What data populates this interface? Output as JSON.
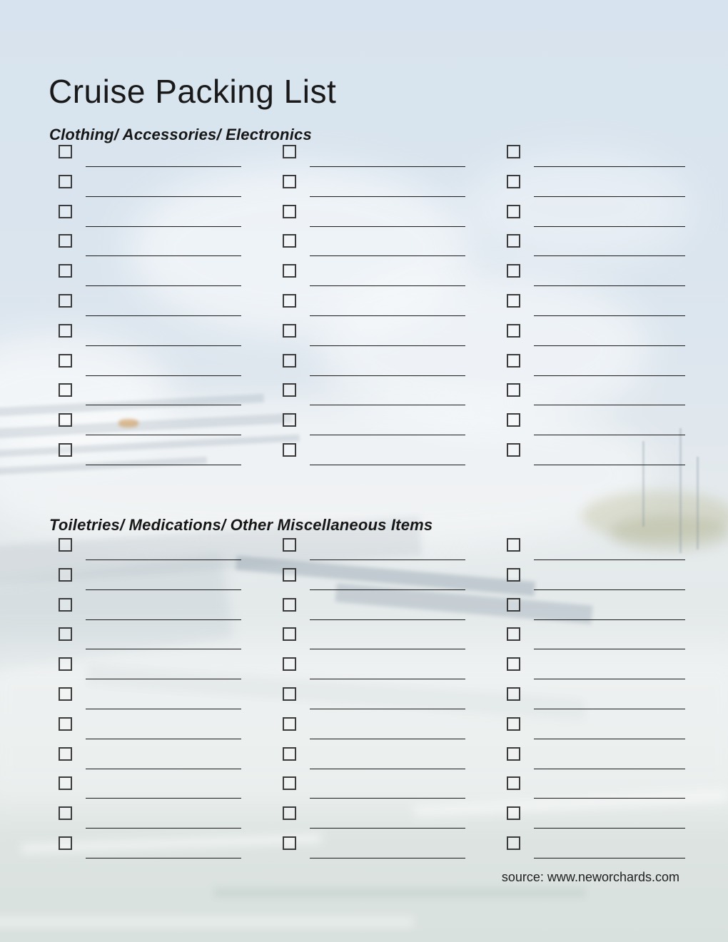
{
  "page": {
    "title": "Cruise Packing List",
    "source_credit": "source: www.neworchards.com"
  },
  "sections": [
    {
      "heading": "Clothing/ Accessories/ Electronics",
      "columns": 3,
      "rows": 11,
      "items_per_section": 33,
      "checkbox_state": "unchecked",
      "item_text": ""
    },
    {
      "heading": "Toiletries/ Medications/ Other Miscellaneous Items",
      "columns": 3,
      "rows": 11,
      "items_per_section": 33,
      "checkbox_state": "unchecked",
      "item_text": ""
    }
  ],
  "colors": {
    "sky": "#d8e3ee",
    "water": "#d9e1df",
    "text": "#1a1a1a",
    "checkbox_border": "#3b3b3b",
    "write_in_line": "#1b1b1b"
  }
}
